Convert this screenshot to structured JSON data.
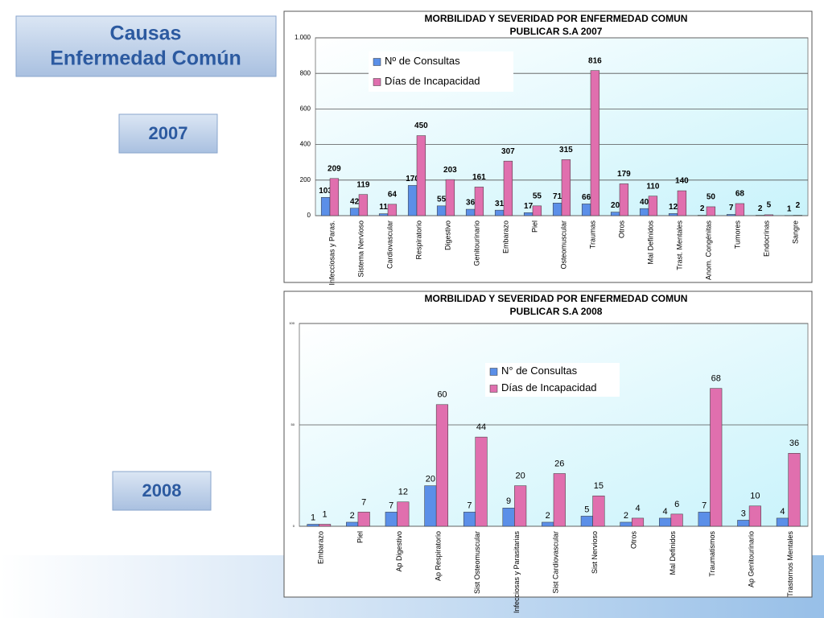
{
  "slide": {
    "title_lines": [
      "Causas",
      "Enfermedad  Común"
    ],
    "year_labels": [
      "2007",
      "2008"
    ]
  },
  "chart_data": [
    {
      "type": "bar",
      "title": "MORBILIDAD Y SEVERIDAD POR ENFERMEDAD COMUN",
      "subtitle": "PUBLICAR S.A  2007",
      "categories": [
        "Infecciosas y Paras.",
        "Sistema Nervioso",
        "Cardiovascular",
        "Respiratorio",
        "Digestivo",
        "Genitourinario",
        "Embarazo",
        "Piel",
        "Osteomuscular",
        "Traumas",
        "Otros",
        "Mal Definidos",
        "Trast. Mentales",
        "Anom. Congénitas",
        "Tumores",
        "Endocrinas",
        "Sangre"
      ],
      "series": [
        {
          "name": "Nº de Consultas",
          "color": "#5b8fe8",
          "values": [
            103,
            42,
            11,
            170,
            55,
            36,
            31,
            17,
            71,
            66,
            20,
            40,
            12,
            2,
            7,
            2,
            1
          ]
        },
        {
          "name": "Días de Incapacidad",
          "color": "#e06fae",
          "values": [
            209,
            119,
            64,
            450,
            203,
            161,
            307,
            55,
            315,
            816,
            179,
            110,
            140,
            50,
            68,
            5,
            2
          ]
        }
      ],
      "ylim": [
        0,
        1000
      ],
      "yticks": [
        0,
        200,
        400,
        600,
        800,
        {
          "value": 1000,
          "label": "1.000"
        }
      ],
      "grid": true,
      "legend": "top-left"
    },
    {
      "type": "bar",
      "title": "MORBILIDAD Y SEVERIDAD POR ENFERMEDAD COMUN",
      "subtitle": "PUBLICAR S.A  2008",
      "categories": [
        "Embarazo",
        "Piel",
        "Ap Digestivo",
        "Ap Respiratorio",
        "Sist Osteomuscular",
        "Infecciosas y Parasitarias",
        "Sist Cardiovascular",
        "Sist Nervioso",
        "Otros",
        "Mal Definidos",
        "Traumatismos",
        "Ap Genitourinario",
        "Trastornos Mentales"
      ],
      "series": [
        {
          "name": "N° de Consultas",
          "color": "#5b8fe8",
          "values": [
            1,
            2,
            7,
            20,
            7,
            9,
            2,
            5,
            2,
            4,
            7,
            3,
            4
          ]
        },
        {
          "name": "Días de Incapacidad",
          "color": "#e06fae",
          "values": [
            1,
            7,
            12,
            60,
            44,
            20,
            26,
            15,
            4,
            6,
            68,
            10,
            36
          ]
        }
      ],
      "ylim": [
        0,
        100
      ],
      "yticks": [
        0,
        50,
        100
      ],
      "grid": true,
      "legend": "top-center"
    }
  ]
}
